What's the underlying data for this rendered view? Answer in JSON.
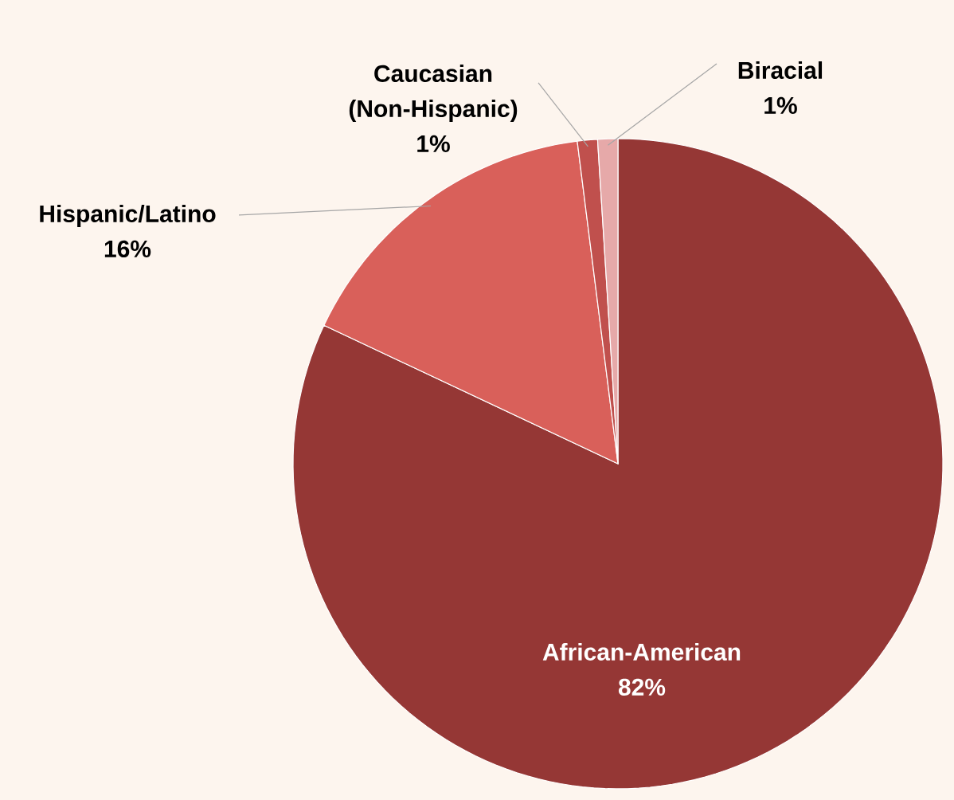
{
  "chart_data": {
    "type": "pie",
    "categories": [
      "African-American",
      "Hispanic/Latino",
      "Caucasian (Non-Hispanic)",
      "Biracial"
    ],
    "values": [
      82,
      16,
      1,
      1
    ],
    "value_labels": [
      "82%",
      "16%",
      "1%",
      "1%"
    ],
    "colors": [
      "#953735",
      "#d9605a",
      "#c0504d",
      "#e6a9a9"
    ]
  }
}
